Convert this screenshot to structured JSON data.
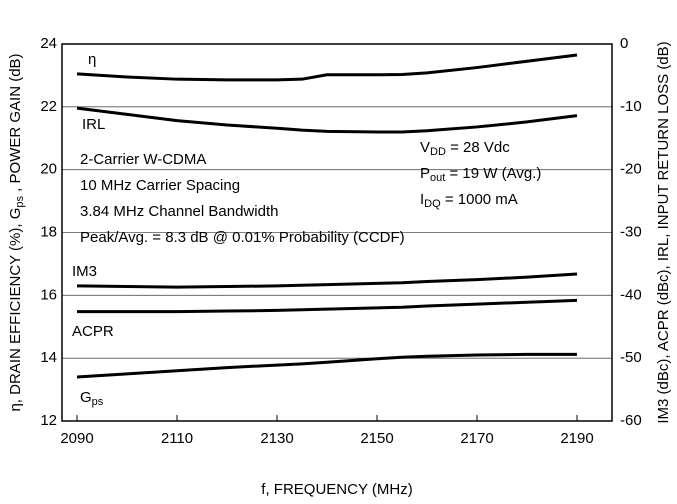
{
  "chart_data": {
    "type": "line",
    "x_label": "f, FREQUENCY (MHz)",
    "y_label": [
      "η, DRAIN EFFICIENCY (%),  G",
      "ps",
      " , POWER GAIN (dB)"
    ],
    "y2_label": "IM3 (dBc), ACPR (dBc), IRL,  INPUT RETURN LOSS (dB)",
    "x": [
      2090,
      2100,
      2110,
      2120,
      2130,
      2135,
      2140,
      2150,
      2155,
      2160,
      2170,
      2180,
      2190
    ],
    "xlim": [
      2087,
      2197
    ],
    "xticks": [
      2090,
      2110,
      2130,
      2150,
      2170,
      2190
    ],
    "ylim": [
      12,
      24
    ],
    "yticks": [
      12,
      14,
      16,
      18,
      20,
      22,
      24
    ],
    "y2lim": [
      -60,
      0
    ],
    "y2ticks": [
      -60,
      -50,
      -40,
      -30,
      -20,
      -10,
      0
    ],
    "grid": true,
    "series": [
      {
        "name": [
          "η"
        ],
        "color": "#000000",
        "values": [
          23.05,
          22.95,
          22.88,
          22.86,
          22.86,
          22.88,
          23.02,
          23.02,
          23.03,
          23.08,
          23.25,
          23.45,
          23.65
        ]
      },
      {
        "name": [
          "IRL"
        ],
        "color": "#000000",
        "axis": "y2",
        "values": [
          -10.2,
          -11.2,
          -12.2,
          -12.9,
          -13.4,
          -13.7,
          -13.9,
          -14.0,
          -14.0,
          -13.8,
          -13.2,
          -12.4,
          -11.4
        ]
      },
      {
        "name": [
          "IM3"
        ],
        "color": "#000000",
        "axis": "y2",
        "values": [
          -38.5,
          -38.6,
          -38.7,
          -38.6,
          -38.5,
          -38.4,
          -38.3,
          -38.1,
          -38.0,
          -37.8,
          -37.5,
          -37.1,
          -36.6
        ]
      },
      {
        "name": [
          "ACPR"
        ],
        "color": "#000000",
        "axis": "y2",
        "values": [
          -42.6,
          -42.6,
          -42.6,
          -42.5,
          -42.4,
          -42.3,
          -42.2,
          -42.0,
          -41.9,
          -41.7,
          -41.4,
          -41.1,
          -40.8
        ]
      },
      {
        "name": [
          "G",
          "ps"
        ],
        "color": "#000000",
        "values": [
          13.4,
          13.5,
          13.6,
          13.7,
          13.78,
          13.82,
          13.87,
          13.98,
          14.03,
          14.06,
          14.1,
          14.12,
          14.12
        ]
      }
    ],
    "annotations_left": [
      "2-Carrier W-CDMA",
      "10 MHz Carrier Spacing",
      "3.84 MHz Channel Bandwidth",
      "Peak/Avg. = 8.3 dB @ 0.01% Probability (CCDF)"
    ],
    "annotations_right": [
      [
        "V",
        "DD",
        " = 28 Vdc"
      ],
      [
        "P",
        "out",
        " = 19 W (Avg.)"
      ],
      [
        "I",
        "DQ",
        " = 1000 mA"
      ]
    ]
  }
}
